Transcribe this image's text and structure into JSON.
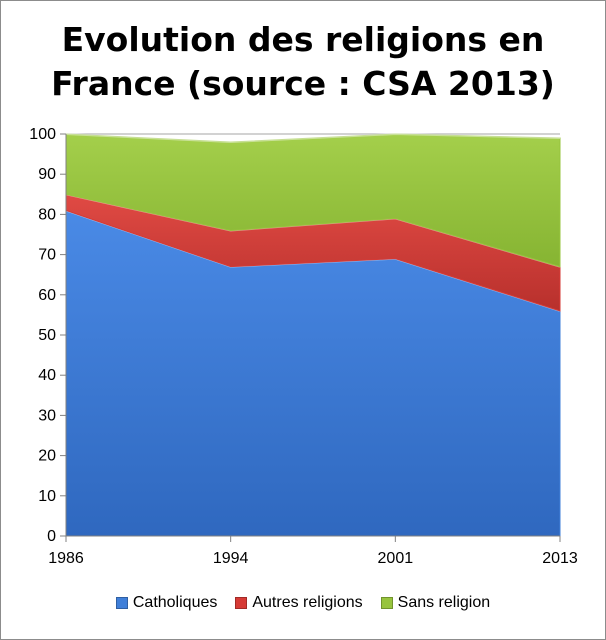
{
  "chart_data": {
    "type": "area",
    "stacked": true,
    "title": "Evolution des religions en France (source : CSA 2013)",
    "title_lines": [
      "Evolution des religions en",
      "France (source : CSA 2013)"
    ],
    "x": [
      "1986",
      "1994",
      "2001",
      "2013"
    ],
    "series": [
      {
        "name": "Catholiques",
        "color": "#3f7fd9",
        "values": [
          81,
          67,
          69,
          56
        ]
      },
      {
        "name": "Autres religions",
        "color": "#d63a35",
        "values": [
          4,
          9,
          10,
          11
        ]
      },
      {
        "name": "Sans religion",
        "color": "#97c43d",
        "values": [
          15,
          22,
          21,
          32
        ]
      }
    ],
    "ylim": [
      0,
      100
    ],
    "yticks": [
      0,
      10,
      20,
      30,
      40,
      50,
      60,
      70,
      80,
      90,
      100
    ],
    "grid": true,
    "legend_position": "bottom"
  }
}
